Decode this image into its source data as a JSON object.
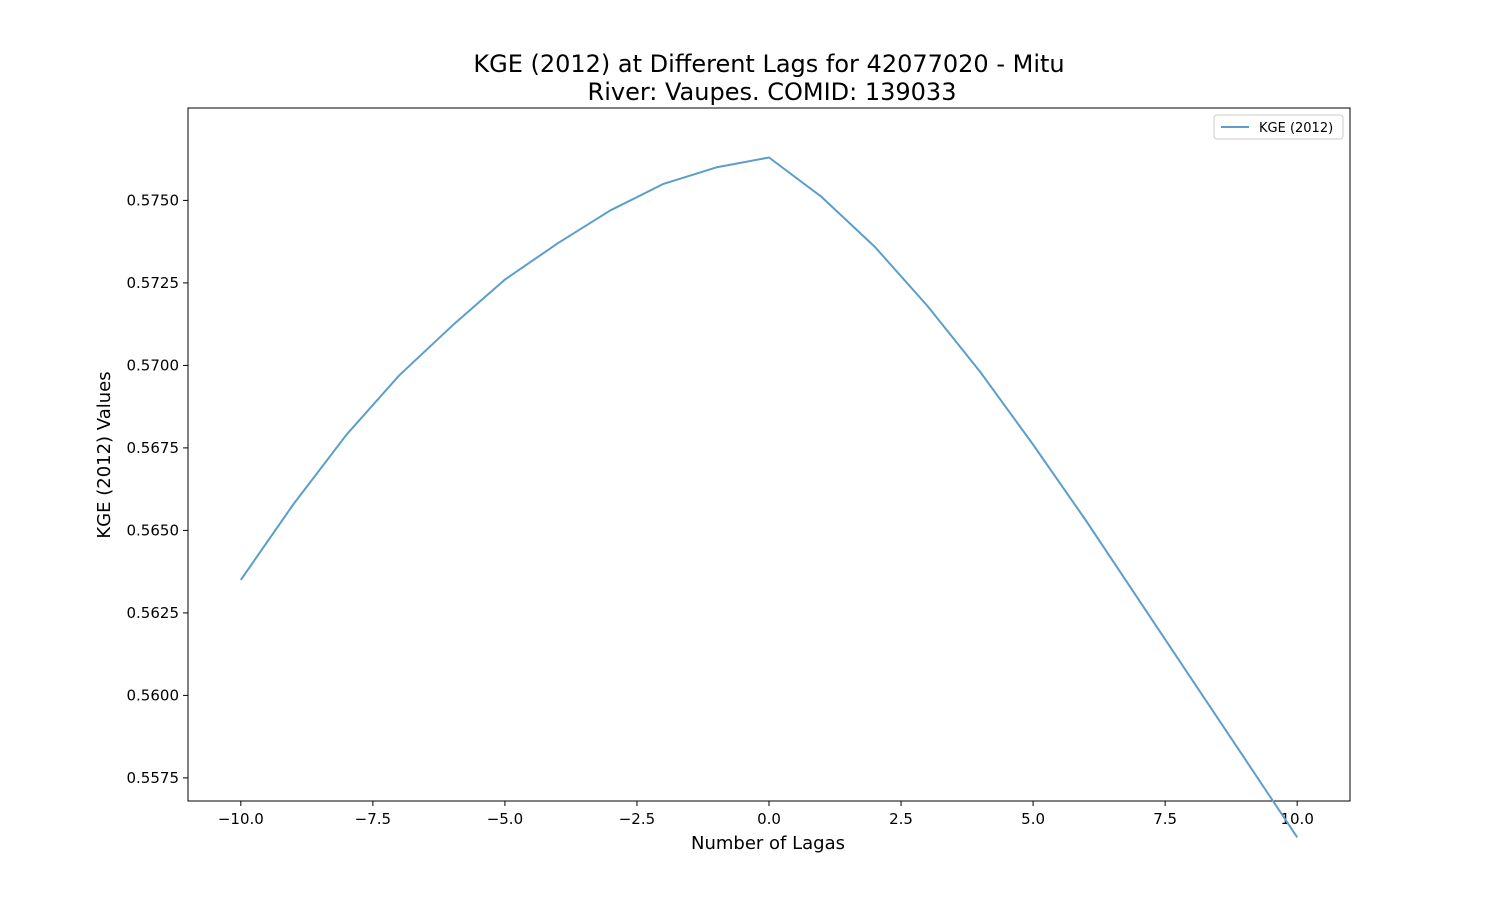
{
  "chart_data": {
    "type": "line",
    "title_line1": "KGE (2012) at Different Lags for 42077020 - Mitu",
    "title_line2": "River: Vaupes. COMID: 139033",
    "xlabel": "Number of Lagas",
    "ylabel": "KGE (2012) Values",
    "xlim": [
      -11,
      11
    ],
    "ylim": [
      0.5568,
      0.5778
    ],
    "x_ticks": [
      -10.0,
      -7.5,
      -5.0,
      -2.5,
      0.0,
      2.5,
      5.0,
      7.5,
      10.0
    ],
    "x_tick_labels": [
      "−10.0",
      "−7.5",
      "−5.0",
      "−2.5",
      "0.0",
      "2.5",
      "5.0",
      "7.5",
      "10.0"
    ],
    "y_ticks": [
      0.5575,
      0.56,
      0.5625,
      0.565,
      0.5675,
      0.57,
      0.5725,
      0.575
    ],
    "y_tick_labels": [
      "0.5575",
      "0.5600",
      "0.5625",
      "0.5650",
      "0.5675",
      "0.5700",
      "0.5725",
      "0.5750"
    ],
    "grid": false,
    "legend_position": "top-right",
    "series": [
      {
        "name": "KGE (2012)",
        "color": "#5b9ecb",
        "x": [
          -10,
          -9,
          -8,
          -7,
          -6,
          -5,
          -4,
          -3,
          -2,
          -1,
          0,
          1,
          2,
          3,
          4,
          5,
          6,
          7,
          8,
          9,
          10
        ],
        "values": [
          0.5635,
          0.5658,
          0.5679,
          0.5697,
          0.5712,
          0.5726,
          0.5737,
          0.5747,
          0.5755,
          0.576,
          0.5763,
          0.5751,
          0.5736,
          0.5718,
          0.5698,
          0.5676,
          0.5653,
          0.5629,
          0.5605,
          0.5581,
          0.5557
        ]
      }
    ]
  }
}
